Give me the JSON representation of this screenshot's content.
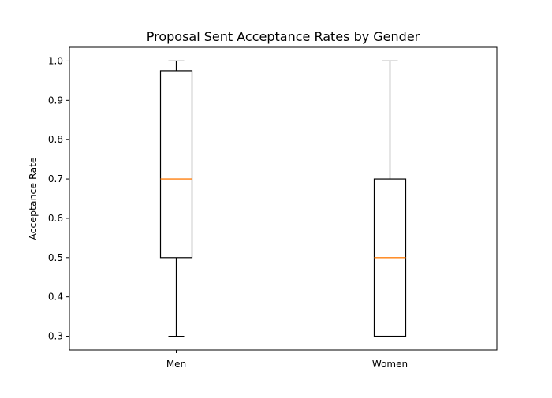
{
  "chart_data": {
    "type": "box",
    "title": "Proposal Sent Acceptance Rates by Gender",
    "xlabel": "",
    "ylabel": "Acceptance Rate",
    "ylim": [
      0.265,
      1.035
    ],
    "yticks": [
      0.3,
      0.4,
      0.5,
      0.6,
      0.7,
      0.8,
      0.9,
      1.0
    ],
    "ytick_labels": [
      "0.3",
      "0.4",
      "0.5",
      "0.6",
      "0.7",
      "0.8",
      "0.9",
      "1.0"
    ],
    "categories": [
      "Men",
      "Women"
    ],
    "boxes": [
      {
        "label": "Men",
        "whisker_low": 0.3,
        "q1": 0.5,
        "median": 0.7,
        "q3": 0.975,
        "whisker_high": 1.0
      },
      {
        "label": "Women",
        "whisker_low": 0.3,
        "q1": 0.3,
        "median": 0.5,
        "q3": 0.7,
        "whisker_high": 1.0
      }
    ],
    "colors": {
      "box": "#000000",
      "median": "#ff7f0e",
      "axes": "#000000"
    },
    "grid": false,
    "legend": "none"
  }
}
